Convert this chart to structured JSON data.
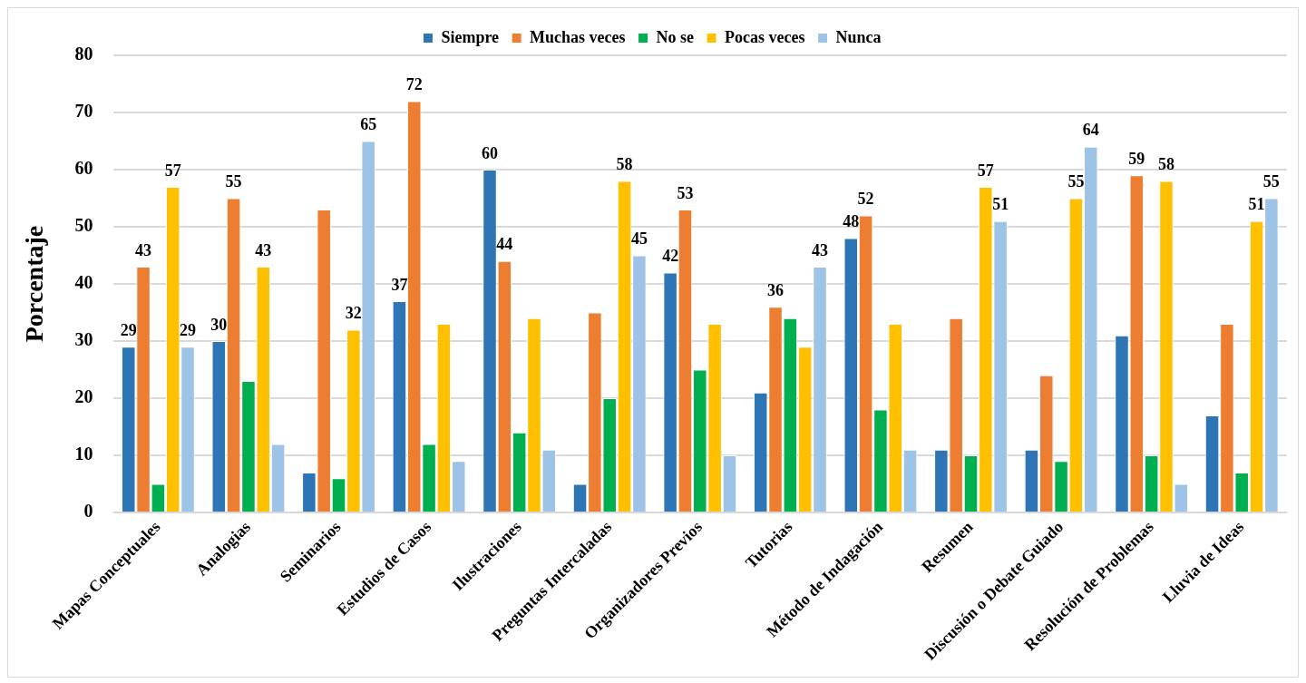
{
  "chart_data": {
    "type": "bar",
    "ylabel": "Porcentaje",
    "categories": [
      "Mapas Conceptuales",
      "Analogias",
      "Seminarios",
      "Estudios de Casos",
      "Ilustraciones",
      "Preguntas Intercaladas",
      "Organizadores Previos",
      "Tutorias",
      "Método de Indagación",
      "Resumen",
      "Discusión o Debate Guiado",
      "Resolución de Problemas",
      "Lluvia de Ideas"
    ],
    "series": [
      {
        "name": "Siempre",
        "color": "#2e75b6",
        "values": [
          29,
          30,
          7,
          37,
          60,
          5,
          42,
          21,
          48,
          11,
          11,
          31,
          17
        ],
        "value_labels": [
          "29",
          "30",
          null,
          "37",
          "60",
          null,
          "42",
          null,
          "48",
          null,
          null,
          null,
          null
        ]
      },
      {
        "name": "Muchas veces",
        "color": "#ed7d31",
        "values": [
          43,
          55,
          53,
          72,
          44,
          35,
          53,
          36,
          52,
          34,
          24,
          59,
          33
        ],
        "value_labels": [
          "43",
          "55",
          null,
          "72",
          "44",
          null,
          "53",
          "36",
          "52",
          null,
          null,
          "59",
          null
        ]
      },
      {
        "name": "No se",
        "color": "#00b050",
        "values": [
          5,
          23,
          6,
          12,
          14,
          20,
          25,
          34,
          18,
          10,
          9,
          10,
          7
        ]
      },
      {
        "name": "Pocas veces",
        "color": "#ffc000",
        "values": [
          57,
          43,
          32,
          33,
          34,
          58,
          33,
          29,
          33,
          57,
          55,
          58,
          51
        ],
        "value_labels": [
          "57",
          "43",
          "32",
          null,
          null,
          "58",
          null,
          null,
          null,
          "57",
          "55",
          "58",
          "51"
        ]
      },
      {
        "name": "Nunca",
        "color": "#9dc3e6",
        "values": [
          29,
          12,
          65,
          9,
          11,
          45,
          10,
          43,
          11,
          51,
          64,
          5,
          55
        ],
        "value_labels": [
          "29",
          null,
          "65",
          null,
          null,
          "45",
          null,
          "43",
          null,
          "51",
          "64",
          null,
          "55"
        ]
      }
    ],
    "ylim": [
      0,
      80
    ],
    "yticks": [
      0,
      10,
      20,
      30,
      40,
      50,
      60,
      70,
      80
    ],
    "grid": "y",
    "legend": "top"
  }
}
